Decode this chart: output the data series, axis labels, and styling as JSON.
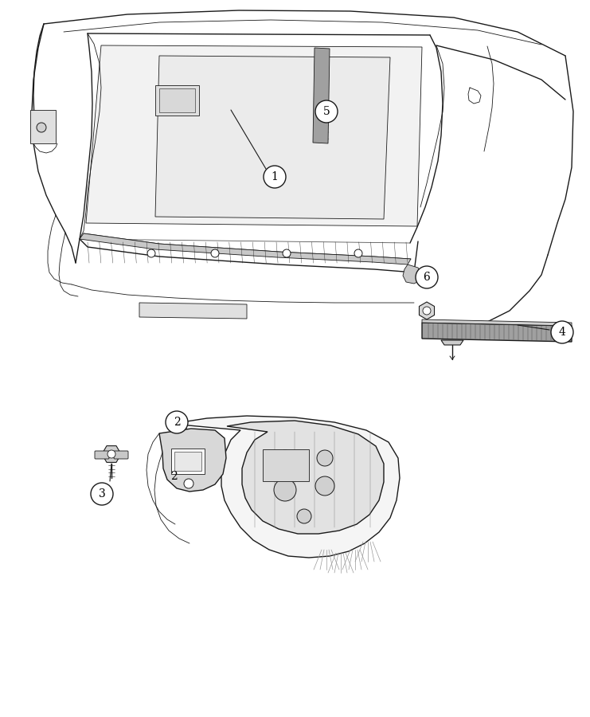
{
  "background_color": "#ffffff",
  "fig_width": 7.41,
  "fig_height": 9.0,
  "dpi": 100,
  "line_color": "#1a1a1a",
  "light_gray": "#c8c8c8",
  "mid_gray": "#a0a0a0",
  "dark_gray": "#707070",
  "very_light_gray": "#e8e8e8"
}
